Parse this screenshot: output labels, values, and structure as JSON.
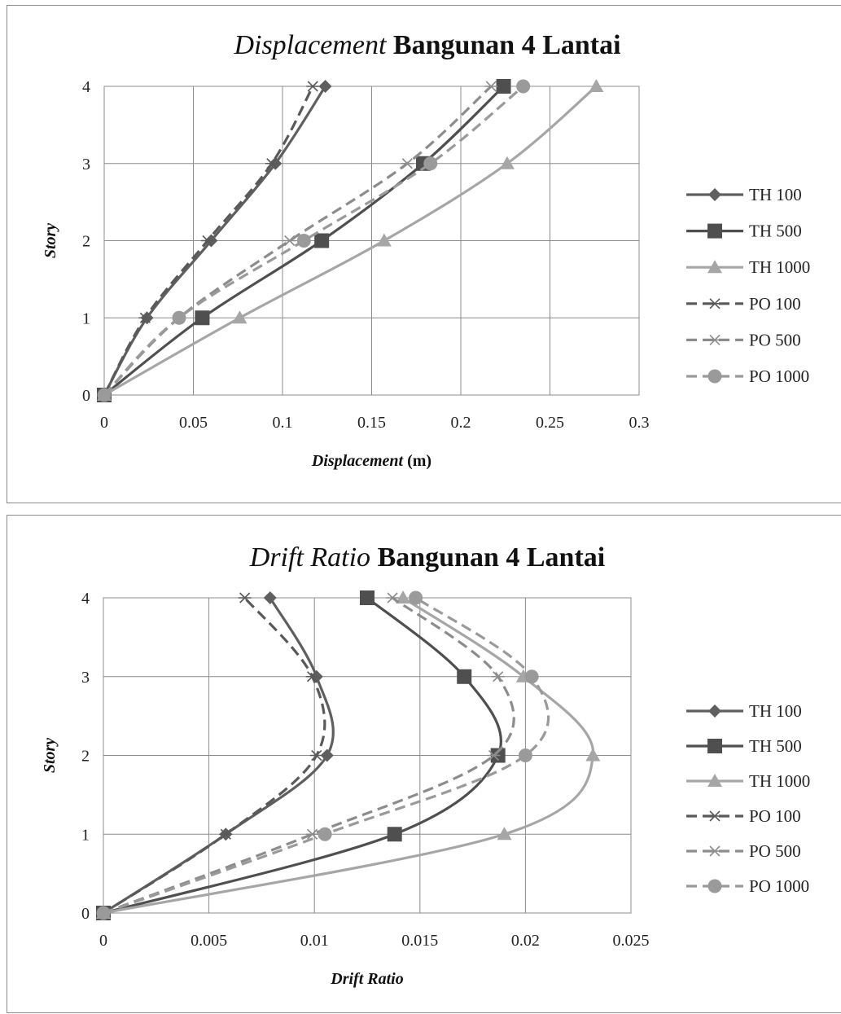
{
  "chart_data": [
    {
      "type": "line",
      "title_italic": "Displacement",
      "title_rest": " Bangunan  4 Lantai",
      "xlabel_italic": "Displacement",
      "xlabel_rest": " (m)",
      "ylabel": "Story",
      "xlim": [
        0,
        0.3
      ],
      "ylim": [
        0,
        4
      ],
      "xticks": [
        "0",
        "0.05",
        "0.1",
        "0.15",
        "0.2",
        "0.25",
        "0.3"
      ],
      "yticks": [
        "0",
        "1",
        "2",
        "3",
        "4"
      ],
      "grid": true,
      "legend_position": "right",
      "y": [
        0,
        1,
        2,
        3,
        4
      ],
      "series": [
        {
          "name": "TH 100",
          "x": [
            0,
            0.024,
            0.06,
            0.096,
            0.124
          ],
          "color": "#5f5f5f",
          "dash": false,
          "marker": "diamond"
        },
        {
          "name": "TH 500",
          "x": [
            0,
            0.055,
            0.122,
            0.179,
            0.224
          ],
          "color": "#4f4f4f",
          "dash": false,
          "marker": "square"
        },
        {
          "name": "TH 1000",
          "x": [
            0,
            0.076,
            0.157,
            0.226,
            0.276
          ],
          "color": "#a6a6a6",
          "dash": false,
          "marker": "triangle"
        },
        {
          "name": "PO 100",
          "x": [
            0,
            0.023,
            0.058,
            0.094,
            0.117
          ],
          "color": "#595959",
          "dash": true,
          "marker": "star"
        },
        {
          "name": "PO 500",
          "x": [
            0,
            0.042,
            0.104,
            0.17,
            0.217
          ],
          "color": "#8c8c8c",
          "dash": true,
          "marker": "star"
        },
        {
          "name": "PO 1000",
          "x": [
            0,
            0.042,
            0.112,
            0.183,
            0.235
          ],
          "color": "#9a9a9a",
          "dash": true,
          "marker": "circle"
        }
      ]
    },
    {
      "type": "line",
      "title_italic": "Drift Ratio",
      "title_rest": " Bangunan  4 Lantai",
      "xlabel_italic": "Drift Ratio",
      "xlabel_rest": "",
      "ylabel": "Story",
      "xlim": [
        0,
        0.025
      ],
      "ylim": [
        0,
        4
      ],
      "xticks": [
        "0",
        "0.005",
        "0.01",
        "0.015",
        "0.02",
        "0.025"
      ],
      "yticks": [
        "0",
        "1",
        "2",
        "3",
        "4"
      ],
      "grid": true,
      "legend_position": "right",
      "y": [
        0,
        1,
        2,
        3,
        4
      ],
      "series": [
        {
          "name": "TH 100",
          "x": [
            0,
            0.0058,
            0.0106,
            0.0101,
            0.0079
          ],
          "color": "#5f5f5f",
          "dash": false,
          "marker": "diamond"
        },
        {
          "name": "TH 500",
          "x": [
            0,
            0.0138,
            0.0187,
            0.0171,
            0.0125
          ],
          "color": "#4f4f4f",
          "dash": false,
          "marker": "square"
        },
        {
          "name": "TH 1000",
          "x": [
            0,
            0.019,
            0.0232,
            0.0199,
            0.0142
          ],
          "color": "#a6a6a6",
          "dash": false,
          "marker": "triangle"
        },
        {
          "name": "PO 100",
          "x": [
            0,
            0.0058,
            0.0101,
            0.0099,
            0.0067
          ],
          "color": "#595959",
          "dash": true,
          "marker": "star"
        },
        {
          "name": "PO 500",
          "x": [
            0,
            0.0099,
            0.0185,
            0.0187,
            0.0137
          ],
          "color": "#8c8c8c",
          "dash": true,
          "marker": "star"
        },
        {
          "name": "PO 1000",
          "x": [
            0,
            0.0105,
            0.02,
            0.0203,
            0.0148
          ],
          "color": "#9a9a9a",
          "dash": true,
          "marker": "circle"
        }
      ]
    }
  ]
}
